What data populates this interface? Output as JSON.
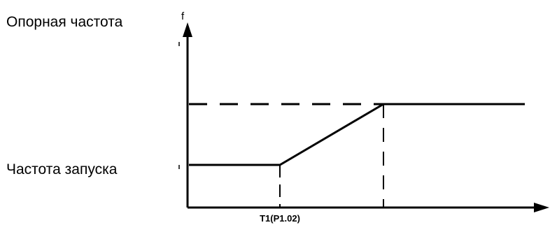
{
  "labels": {
    "reference_frequency": "Опорная частота",
    "start_frequency": "Частота запуска"
  },
  "axes": {
    "y_axis_label": "f",
    "x_tick_label": "T1(P1.02)"
  },
  "colors": {
    "line": "#000000",
    "background": "#ffffff"
  }
}
